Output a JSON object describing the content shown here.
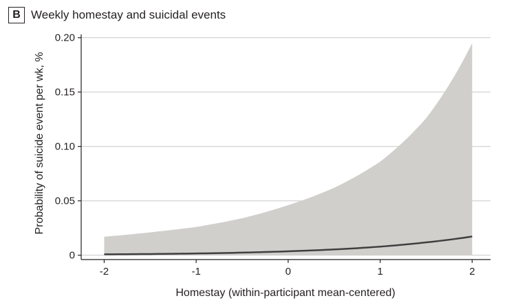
{
  "panel": {
    "letter": "B",
    "title": "Weekly homestay and suicidal events"
  },
  "chart_data": {
    "type": "line",
    "xlabel": "Homestay (within-participant mean-centered)",
    "ylabel": "Probability of suicide event per wk, %",
    "xlim": [
      -2.25,
      2.2
    ],
    "ylim": [
      -0.004,
      0.203
    ],
    "x_ticks": [
      -2,
      -1,
      0,
      1,
      2
    ],
    "x_tick_labels": [
      "-2",
      "-1",
      "0",
      "1",
      "2"
    ],
    "y_ticks": [
      0,
      0.05,
      0.1,
      0.15,
      0.2
    ],
    "y_tick_labels": [
      "0",
      "0.05",
      "0.10",
      "0.15",
      "0.20"
    ],
    "grid": "horizontal",
    "series": [
      {
        "x": [
          -2,
          -1.5,
          -1,
          -0.5,
          0,
          0.5,
          1,
          1.5,
          2
        ],
        "y": [
          0.0008,
          0.0011,
          0.0016,
          0.0024,
          0.0036,
          0.0053,
          0.0079,
          0.0118,
          0.0172
        ],
        "ci_lower": [
          0,
          0,
          0,
          0,
          0,
          0,
          0,
          0,
          0
        ],
        "ci_upper": [
          0.017,
          0.021,
          0.026,
          0.034,
          0.046,
          0.062,
          0.086,
          0.126,
          0.195
        ]
      }
    ],
    "colors": {
      "line": "#3f3f3f",
      "band": "#d0cfcc",
      "grid": "#c8c8c8",
      "axis": "#231f20"
    }
  }
}
